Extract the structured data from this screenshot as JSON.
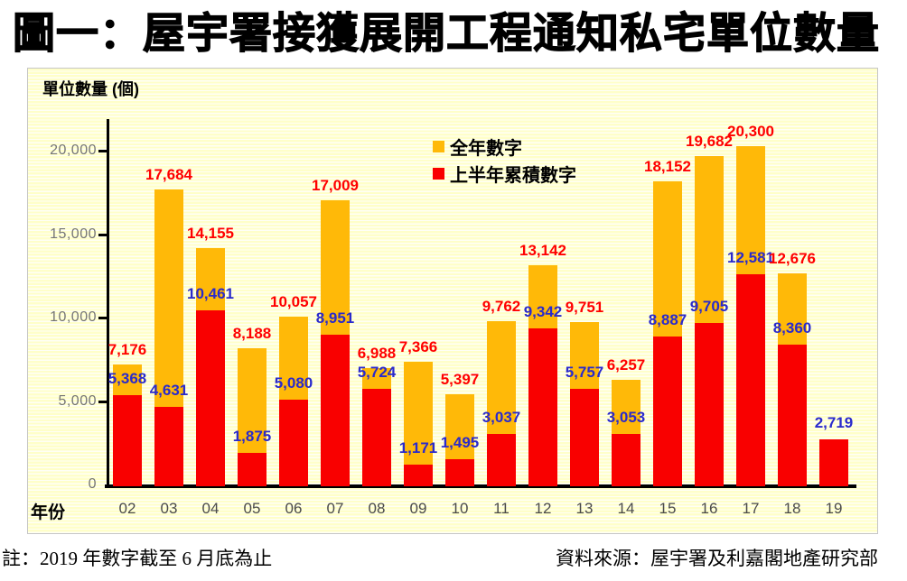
{
  "title": "圖一：屋宇署接獲展開工程通知私宅單位數量",
  "chart": {
    "y_axis_label": "單位數量 (個)",
    "x_axis_label": "年份",
    "y_ticks": [
      {
        "label": "20,000",
        "value": 20000
      },
      {
        "label": "15,000",
        "value": 15000
      },
      {
        "label": "10,000",
        "value": 10000
      },
      {
        "label": "5,000",
        "value": 5000
      },
      {
        "label": "0",
        "value": 0
      }
    ],
    "legend": [
      {
        "label": "全年數字",
        "color": "#ffb908"
      },
      {
        "label": "上半年累積數字",
        "color": "#f90000"
      }
    ]
  },
  "chart_data": {
    "type": "bar",
    "title": "圖一：屋宇署接獲展開工程通知私宅單位數量",
    "xlabel": "年份",
    "ylabel": "單位數量 (個)",
    "ylim": [
      0,
      22000
    ],
    "grid": false,
    "legend_position": "top-center-inside",
    "categories": [
      "02",
      "03",
      "04",
      "05",
      "06",
      "07",
      "08",
      "09",
      "10",
      "11",
      "12",
      "13",
      "14",
      "15",
      "16",
      "17",
      "18",
      "19"
    ],
    "series": [
      {
        "name": "全年數字",
        "color": "#ffb908",
        "label_color": "#ff0000",
        "values": [
          7176,
          17684,
          14155,
          8188,
          10057,
          17009,
          6988,
          7366,
          5397,
          9762,
          13142,
          9751,
          6257,
          18152,
          19682,
          20300,
          12676,
          null
        ]
      },
      {
        "name": "上半年累積數字",
        "color": "#f90000",
        "label_color": "#2a2acc",
        "values": [
          5368,
          4631,
          10461,
          1875,
          5080,
          8951,
          5724,
          1171,
          1495,
          3037,
          9342,
          5757,
          3053,
          8887,
          9705,
          12581,
          8360,
          2719
        ]
      }
    ]
  },
  "footer": {
    "note": "註：2019 年數字截至 6 月底為止",
    "source": "資料來源：屋宇署及利嘉閣地產研究部"
  }
}
